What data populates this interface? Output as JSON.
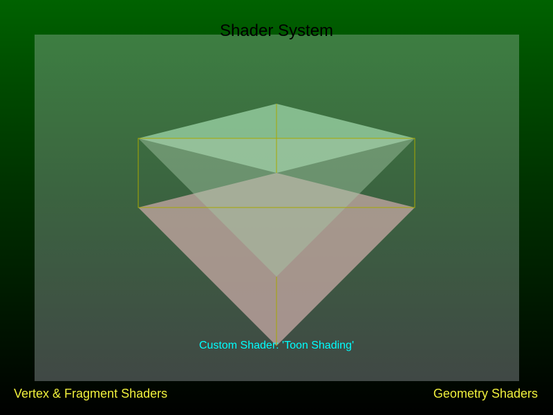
{
  "window": {
    "title": "Shader System"
  },
  "viewport": {
    "caption": "Custom Shader: 'Toon Shading'"
  },
  "footer": {
    "left_label": "Vertex & Fragment Shaders",
    "right_label": "Geometry Shaders"
  },
  "colors": {
    "label_yellow": "#f0f03c",
    "caption_cyan": "#00ffff",
    "wireframe": "#a8a800",
    "top_face": "#9ed6a8",
    "bottom_face": "#c8aaa5"
  }
}
